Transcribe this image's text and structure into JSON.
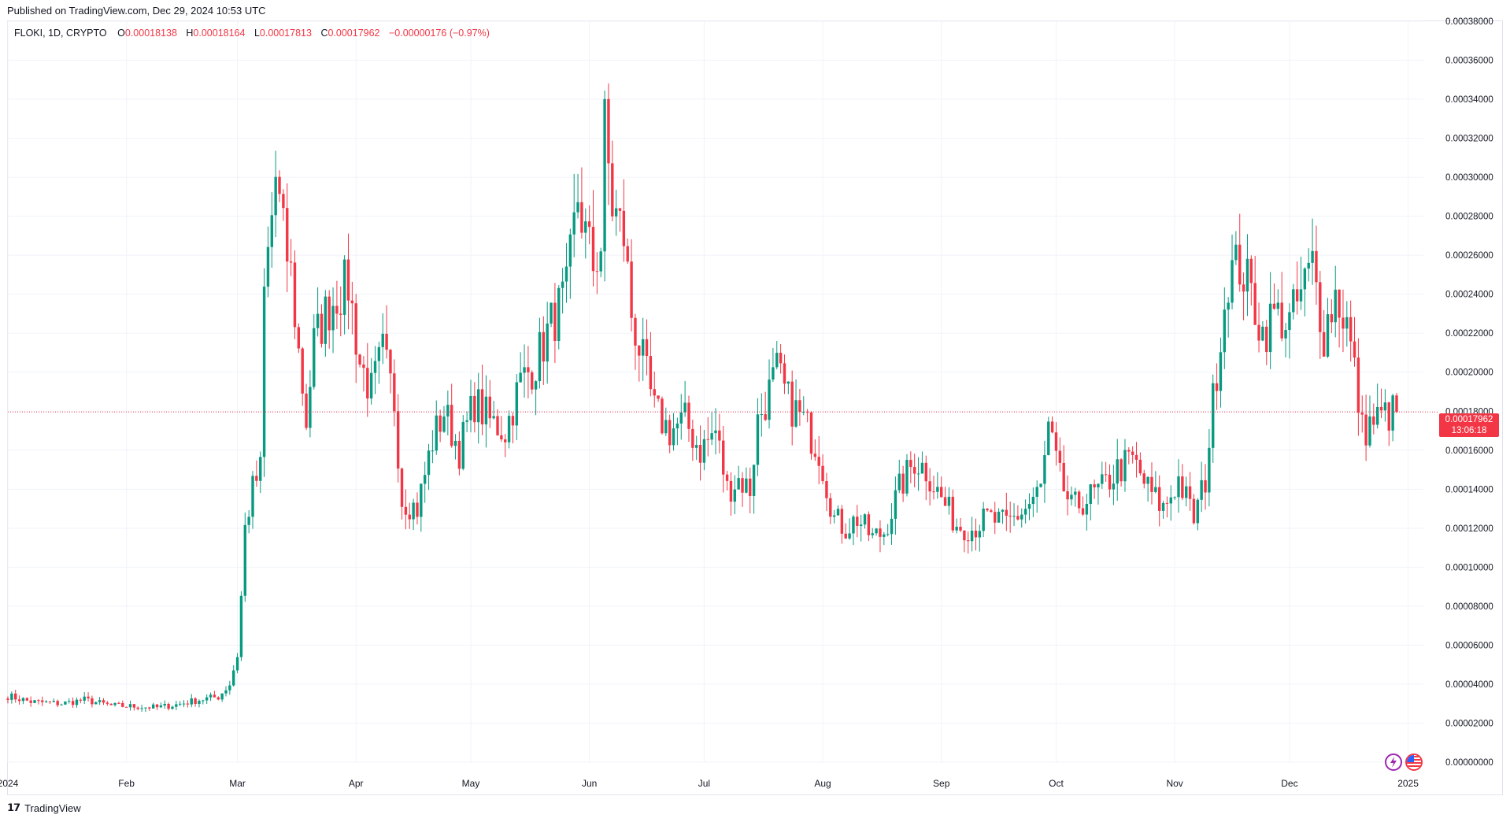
{
  "published_label": "Published on TradingView.com, Dec 29, 2024 10:53 UTC",
  "legend": {
    "symbol": "FLOKI, 1D, CRYPTO",
    "o_key": "O",
    "o_val": "0.00018138",
    "h_key": "H",
    "h_val": "0.00018164",
    "l_key": "L",
    "l_val": "0.00017813",
    "c_key": "C",
    "c_val": "0.00017962",
    "change": "−0.00000176 (−0.97%)"
  },
  "price_badge": {
    "price": "0.00017962",
    "countdown": "13:06:18"
  },
  "footer": {
    "brand": "TradingView"
  },
  "icons": [
    "lightning-icon",
    "us-flag-icon"
  ],
  "colors": {
    "up": "#089981",
    "down": "#f23645",
    "grid": "#f0f3fa",
    "axis_text": "#131722"
  },
  "chart_data": {
    "type": "candlestick",
    "symbol": "FLOKI",
    "interval": "1D",
    "ylim": [
      0,
      0.00038
    ],
    "y_ticks": [
      "0.00000000",
      "0.00002000",
      "0.00004000",
      "0.00006000",
      "0.00008000",
      "0.00010000",
      "0.00012000",
      "0.00014000",
      "0.00016000",
      "0.00018000",
      "0.00020000",
      "0.00022000",
      "0.00024000",
      "0.00026000",
      "0.00028000",
      "0.00030000",
      "0.00032000",
      "0.00034000",
      "0.00036000",
      "0.00038000"
    ],
    "x_ticks": [
      "2024",
      "Feb",
      "Mar",
      "Apr",
      "May",
      "Jun",
      "Jul",
      "Aug",
      "Sep",
      "Oct",
      "Nov",
      "Dec",
      "2025"
    ],
    "x_tick_dates": [
      "2024-01-01",
      "2024-02-01",
      "2024-03-01",
      "2024-04-01",
      "2024-05-01",
      "2024-06-01",
      "2024-07-01",
      "2024-08-01",
      "2024-09-01",
      "2024-10-01",
      "2024-11-01",
      "2024-12-01",
      "2025-01-01"
    ],
    "x_range": [
      "2024-01-01",
      "2025-01-05"
    ],
    "last_close": 0.00017962,
    "close_anchors": [
      [
        "2024-01-01",
        3.4e-05
      ],
      [
        "2024-01-07",
        3.1e-05
      ],
      [
        "2024-01-15",
        3e-05
      ],
      [
        "2024-01-21",
        3.2e-05
      ],
      [
        "2024-01-28",
        2.9e-05
      ],
      [
        "2024-02-04",
        2.85e-05
      ],
      [
        "2024-02-09",
        2.8e-05
      ],
      [
        "2024-02-14",
        2.95e-05
      ],
      [
        "2024-02-20",
        3.2e-05
      ],
      [
        "2024-02-25",
        3.35e-05
      ],
      [
        "2024-02-28",
        4e-05
      ],
      [
        "2024-03-01",
        5.5e-05
      ],
      [
        "2024-03-02",
        8.5e-05
      ],
      [
        "2024-03-03",
        0.00012
      ],
      [
        "2024-03-05",
        0.00014
      ],
      [
        "2024-03-07",
        0.00015
      ],
      [
        "2024-03-08",
        0.00024
      ],
      [
        "2024-03-10",
        0.00028
      ],
      [
        "2024-03-11",
        0.0003
      ],
      [
        "2024-03-13",
        0.00027
      ],
      [
        "2024-03-15",
        0.00025
      ],
      [
        "2024-03-17",
        0.00021
      ],
      [
        "2024-03-19",
        0.000175
      ],
      [
        "2024-03-21",
        0.000215
      ],
      [
        "2024-03-24",
        0.00023
      ],
      [
        "2024-03-27",
        0.00024
      ],
      [
        "2024-03-30",
        0.000245
      ],
      [
        "2024-04-02",
        0.000205
      ],
      [
        "2024-04-05",
        0.00019
      ],
      [
        "2024-04-08",
        0.00021
      ],
      [
        "2024-04-11",
        0.000185
      ],
      [
        "2024-04-13",
        0.000135
      ],
      [
        "2024-04-17",
        0.00013
      ],
      [
        "2024-04-21",
        0.000165
      ],
      [
        "2024-04-24",
        0.00018
      ],
      [
        "2024-04-28",
        0.00016
      ],
      [
        "2024-05-02",
        0.000185
      ],
      [
        "2024-05-06",
        0.000175
      ],
      [
        "2024-05-10",
        0.00017
      ],
      [
        "2024-05-14",
        0.000195
      ],
      [
        "2024-05-18",
        0.000205
      ],
      [
        "2024-05-22",
        0.000225
      ],
      [
        "2024-05-26",
        0.00024
      ],
      [
        "2024-05-29",
        0.00029
      ],
      [
        "2024-05-31",
        0.00027
      ],
      [
        "2024-06-02",
        0.000255
      ],
      [
        "2024-06-04",
        0.000265
      ],
      [
        "2024-06-05",
        0.000325
      ],
      [
        "2024-06-07",
        0.000285
      ],
      [
        "2024-06-10",
        0.00027
      ],
      [
        "2024-06-12",
        0.00023
      ],
      [
        "2024-06-15",
        0.000205
      ],
      [
        "2024-06-18",
        0.00018
      ],
      [
        "2024-06-22",
        0.00017
      ],
      [
        "2024-06-26",
        0.000175
      ],
      [
        "2024-06-30",
        0.00016
      ],
      [
        "2024-07-04",
        0.00017
      ],
      [
        "2024-07-07",
        0.00014
      ],
      [
        "2024-07-10",
        0.000145
      ],
      [
        "2024-07-13",
        0.00014
      ],
      [
        "2024-07-15",
        0.000175
      ],
      [
        "2024-07-18",
        0.00019
      ],
      [
        "2024-07-20",
        0.0002
      ],
      [
        "2024-07-23",
        0.000185
      ],
      [
        "2024-07-27",
        0.000175
      ],
      [
        "2024-07-31",
        0.00016
      ],
      [
        "2024-08-04",
        0.000125
      ],
      [
        "2024-08-07",
        0.00012
      ],
      [
        "2024-08-10",
        0.000125
      ],
      [
        "2024-08-14",
        0.000115
      ],
      [
        "2024-08-17",
        0.000118
      ],
      [
        "2024-08-21",
        0.00014
      ],
      [
        "2024-08-25",
        0.000155
      ],
      [
        "2024-08-28",
        0.00015
      ],
      [
        "2024-09-01",
        0.000135
      ],
      [
        "2024-09-05",
        0.000122
      ],
      [
        "2024-09-09",
        0.00012
      ],
      [
        "2024-09-13",
        0.000125
      ],
      [
        "2024-09-18",
        0.000122
      ],
      [
        "2024-09-23",
        0.00013
      ],
      [
        "2024-09-27",
        0.00014
      ],
      [
        "2024-09-29",
        0.00017
      ],
      [
        "2024-10-02",
        0.000145
      ],
      [
        "2024-10-05",
        0.00013
      ],
      [
        "2024-10-09",
        0.000135
      ],
      [
        "2024-10-13",
        0.00014
      ],
      [
        "2024-10-17",
        0.00015
      ],
      [
        "2024-10-21",
        0.000155
      ],
      [
        "2024-10-25",
        0.00014
      ],
      [
        "2024-10-29",
        0.00013
      ],
      [
        "2024-11-02",
        0.000145
      ],
      [
        "2024-11-06",
        0.000125
      ],
      [
        "2024-11-09",
        0.000145
      ],
      [
        "2024-11-11",
        0.000185
      ],
      [
        "2024-11-13",
        0.00022
      ],
      [
        "2024-11-15",
        0.00025
      ],
      [
        "2024-11-18",
        0.000255
      ],
      [
        "2024-11-21",
        0.00024
      ],
      [
        "2024-11-24",
        0.00022
      ],
      [
        "2024-11-27",
        0.00023
      ],
      [
        "2024-12-01",
        0.000225
      ],
      [
        "2024-12-05",
        0.000245
      ],
      [
        "2024-12-07",
        0.000255
      ],
      [
        "2024-12-10",
        0.00022
      ],
      [
        "2024-12-13",
        0.00024
      ],
      [
        "2024-12-16",
        0.000225
      ],
      [
        "2024-12-18",
        0.0002
      ],
      [
        "2024-12-20",
        0.00017
      ],
      [
        "2024-12-23",
        0.000175
      ],
      [
        "2024-12-26",
        0.000178
      ],
      [
        "2024-12-29",
        0.00017962
      ]
    ]
  }
}
